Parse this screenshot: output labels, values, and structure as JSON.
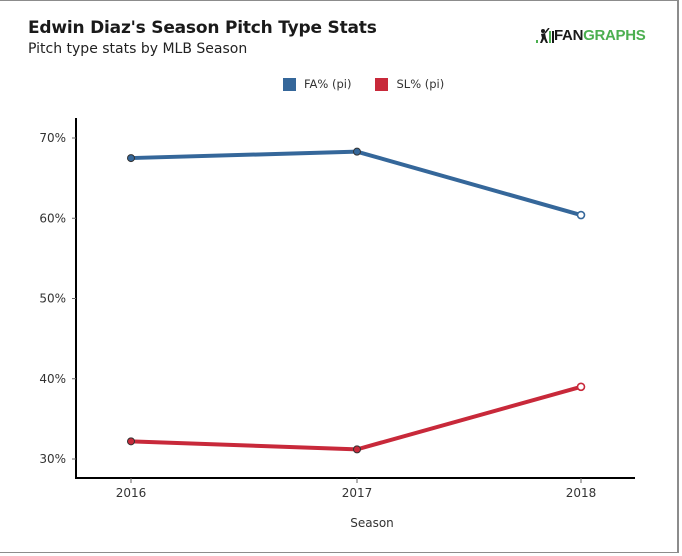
{
  "header": {
    "title": "Edwin Diaz's Season Pitch Type Stats",
    "subtitle": "Pitch type stats by MLB Season",
    "logo_left": "FAN",
    "logo_right": "GRAPHS",
    "logo_icon": "batter-icon"
  },
  "colors": {
    "fa": "#35679a",
    "sl": "#c8293a",
    "logo_green": "#4caf50"
  },
  "chart_data": {
    "type": "line",
    "title": "Edwin Diaz's Season Pitch Type Stats",
    "subtitle": "Pitch type stats by MLB Season",
    "xlabel": "Season",
    "ylabel": "",
    "categories": [
      "2016",
      "2017",
      "2018"
    ],
    "yticks": [
      30,
      40,
      50,
      60,
      70
    ],
    "ytick_labels": [
      "30%",
      "40%",
      "50%",
      "60%",
      "70%"
    ],
    "ylim": [
      27.5,
      73
    ],
    "grid": false,
    "legend_position": "top-center",
    "series": [
      {
        "name": "FA% (pi)",
        "color": "#35679a",
        "values": [
          67.5,
          68.3,
          60.4
        ]
      },
      {
        "name": "SL% (pi)",
        "color": "#c8293a",
        "values": [
          32.2,
          31.2,
          39.0
        ]
      }
    ]
  }
}
